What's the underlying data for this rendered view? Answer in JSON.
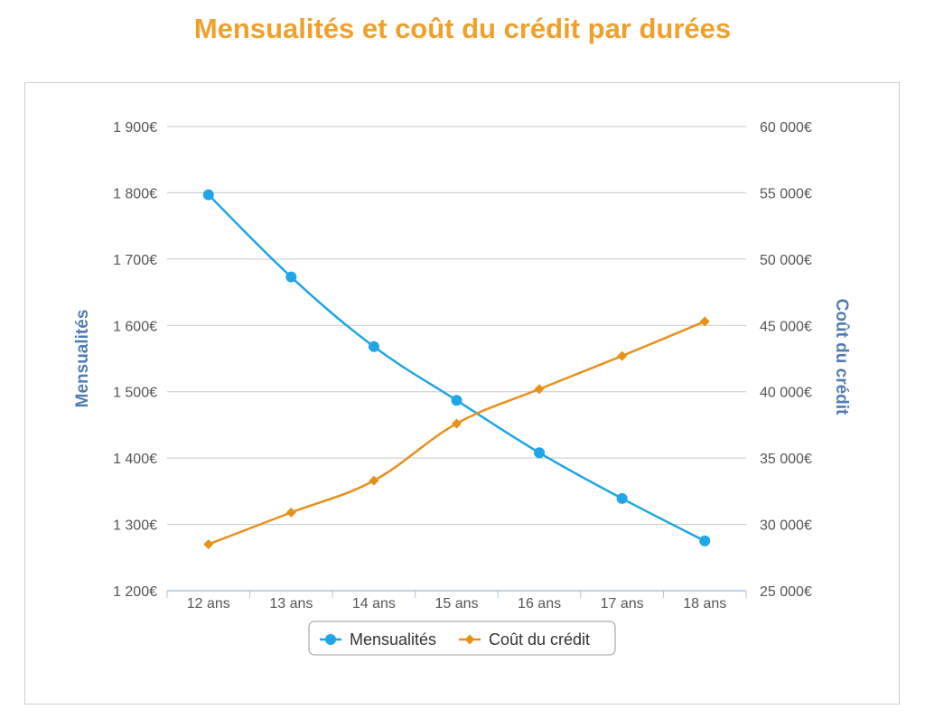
{
  "chart_data": {
    "type": "line",
    "title": "Mensualités et coût du crédit par durées",
    "categories": [
      "12 ans",
      "13 ans",
      "14 ans",
      "15 ans",
      "16 ans",
      "17 ans",
      "18 ans"
    ],
    "series": [
      {
        "name": "Mensualités",
        "axis": "left",
        "color": "#1ea6e6",
        "marker": "circle",
        "values": [
          1797,
          1673,
          1568,
          1487,
          1408,
          1339,
          1275
        ]
      },
      {
        "name": "Coût du crédit",
        "axis": "right",
        "color": "#e8901a",
        "marker": "diamond",
        "values": [
          28500,
          30900,
          33300,
          37600,
          40200,
          42700,
          45300
        ]
      }
    ],
    "y_left": {
      "label": "Mensualités",
      "range": [
        1200,
        1900
      ],
      "ticks": [
        {
          "value": 1900,
          "label": "1 900€"
        },
        {
          "value": 1800,
          "label": "1 800€"
        },
        {
          "value": 1700,
          "label": "1 700€"
        },
        {
          "value": 1600,
          "label": "1 600€"
        },
        {
          "value": 1500,
          "label": "1 500€"
        },
        {
          "value": 1400,
          "label": "1 400€"
        },
        {
          "value": 1300,
          "label": "1 300€"
        },
        {
          "value": 1200,
          "label": "1 200€"
        }
      ]
    },
    "y_right": {
      "label": "Coût du crédit",
      "range": [
        25000,
        60000
      ],
      "ticks": [
        {
          "value": 60000,
          "label": "60 000€"
        },
        {
          "value": 55000,
          "label": "55 000€"
        },
        {
          "value": 50000,
          "label": "50 000€"
        },
        {
          "value": 45000,
          "label": "45 000€"
        },
        {
          "value": 40000,
          "label": "40 000€"
        },
        {
          "value": 35000,
          "label": "35 000€"
        },
        {
          "value": 30000,
          "label": "30 000€"
        },
        {
          "value": 25000,
          "label": "25 000€"
        }
      ]
    },
    "grid": true,
    "legend": "bottom-center",
    "colors": {
      "title": "#f0a02a",
      "axis_title": "#4f7db2",
      "grid": "#c8c8c8",
      "x_axis": "#a9c3e0"
    }
  }
}
